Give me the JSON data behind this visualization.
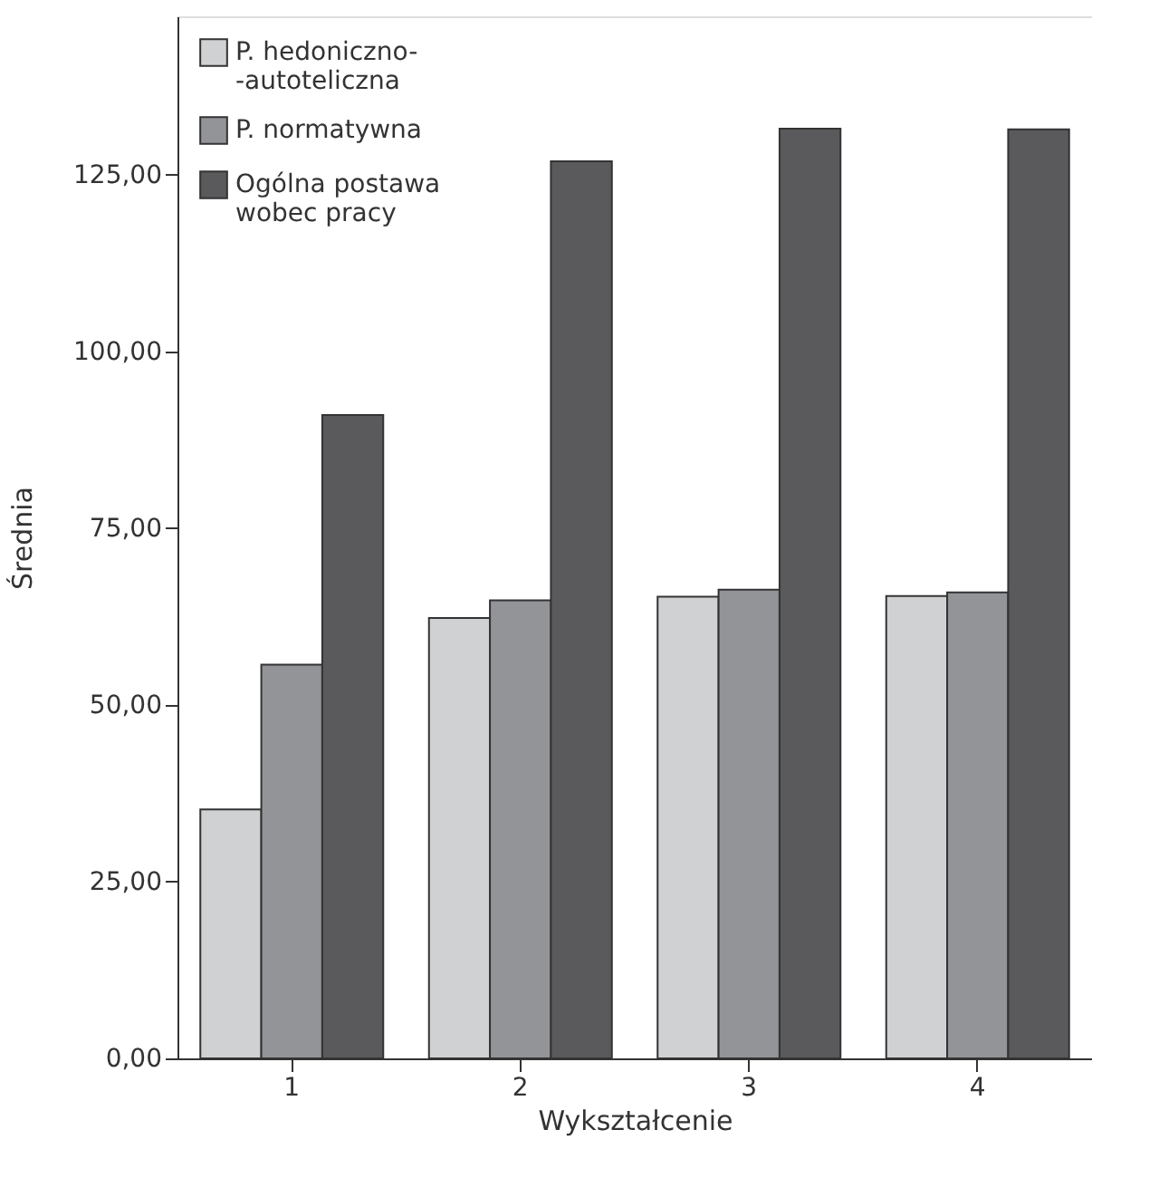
{
  "chart_data": {
    "type": "bar",
    "xlabel": "Wykształcenie",
    "ylabel": "Średnia",
    "categories": [
      "1",
      "2",
      "3",
      "4"
    ],
    "series": [
      {
        "name": "P. hedoniczno-\n-autoteliczna",
        "color": "#d0d1d3",
        "values": [
          35.2,
          62.3,
          65.3,
          65.4
        ]
      },
      {
        "name": "P. normatywna",
        "color": "#939498",
        "values": [
          55.7,
          64.8,
          66.3,
          65.9
        ]
      },
      {
        "name": "Ogólna postawa\nwobec pracy",
        "color": "#5a5a5c",
        "values": [
          91.0,
          126.9,
          131.5,
          131.4
        ]
      }
    ],
    "ylim": [
      0,
      147.4
    ],
    "yticks": [
      {
        "value": 0,
        "label": "0,00"
      },
      {
        "value": 25,
        "label": "25,00"
      },
      {
        "value": 50,
        "label": "50,00"
      },
      {
        "value": 75,
        "label": "75,00"
      },
      {
        "value": 100,
        "label": "100,00"
      },
      {
        "value": 125,
        "label": "125,00"
      }
    ],
    "grid": false,
    "legend": "top left"
  }
}
